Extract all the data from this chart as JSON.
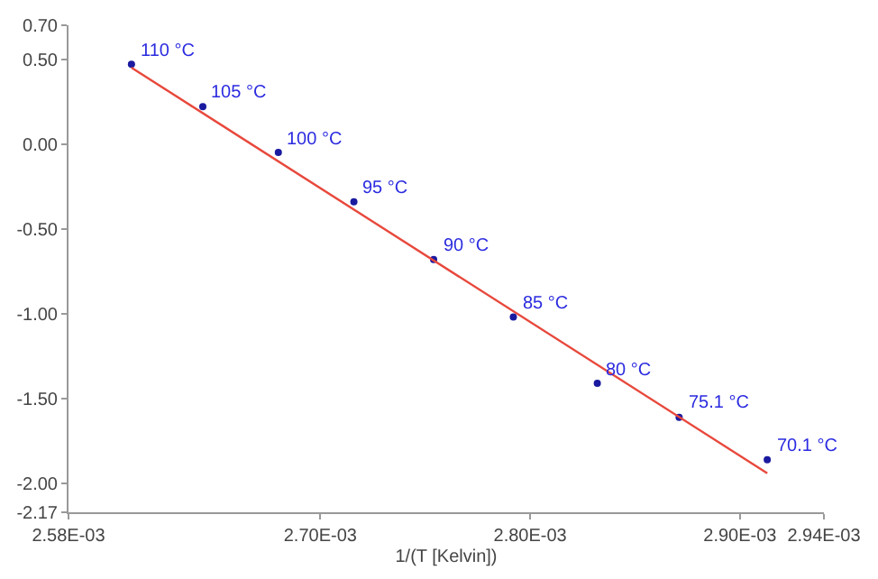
{
  "chart_data": {
    "type": "scatter",
    "xlabel": "1/(T [Kelvin])",
    "series": [
      {
        "color": "#1a1aa0",
        "marker": "circle",
        "x": [
          0.00261,
          0.002644,
          0.00268,
          0.002716,
          0.002754,
          0.002792,
          0.002832,
          0.002871,
          0.002913
        ],
        "values": [
          0.47,
          0.22,
          -0.05,
          -0.34,
          -0.68,
          -1.02,
          -1.41,
          -1.61,
          -1.86
        ]
      },
      {
        "type": "line",
        "color": "#e8483c",
        "line_style": "solid",
        "x": [
          0.00261,
          0.002913
        ],
        "values": [
          0.45,
          -1.94
        ]
      }
    ],
    "annotations": [
      {
        "text": "110 °C",
        "x": 0.00261,
        "y": 0.47
      },
      {
        "text": "105 °C",
        "x": 0.002644,
        "y": 0.22
      },
      {
        "text": "100 °C",
        "x": 0.00268,
        "y": -0.05
      },
      {
        "text": "95 °C",
        "x": 0.002716,
        "y": -0.34
      },
      {
        "text": "90 °C",
        "x": 0.002754,
        "y": -0.68
      },
      {
        "text": "85 °C",
        "x": 0.002792,
        "y": -1.02
      },
      {
        "text": "80 °C",
        "x": 0.002832,
        "y": -1.41
      },
      {
        "text": "75.1 °C",
        "x": 0.002871,
        "y": -1.61
      },
      {
        "text": "70.1 °C",
        "x": 0.002913,
        "y": -1.86
      }
    ],
    "xlim": [
      0.00258,
      0.00294
    ],
    "xticks": [
      {
        "value": 0.00258,
        "label": "2.58E-03"
      },
      {
        "value": 0.0027,
        "label": "2.70E-03"
      },
      {
        "value": 0.0028,
        "label": "2.80E-03"
      },
      {
        "value": 0.0029,
        "label": "2.90E-03"
      },
      {
        "value": 0.00294,
        "label": "2.94E-03"
      }
    ],
    "ylim": [
      -2.17,
      0.7
    ],
    "yticks": [
      {
        "value": 0.7,
        "label": "0.70"
      },
      {
        "value": 0.5,
        "label": "0.50"
      },
      {
        "value": 0,
        "label": "0.00"
      },
      {
        "value": -0.5,
        "label": "-0.50"
      },
      {
        "value": -1,
        "label": "-1.00"
      },
      {
        "value": -1.5,
        "label": "-1.50"
      },
      {
        "value": -2,
        "label": "-2.00"
      },
      -2.17
    ]
  }
}
